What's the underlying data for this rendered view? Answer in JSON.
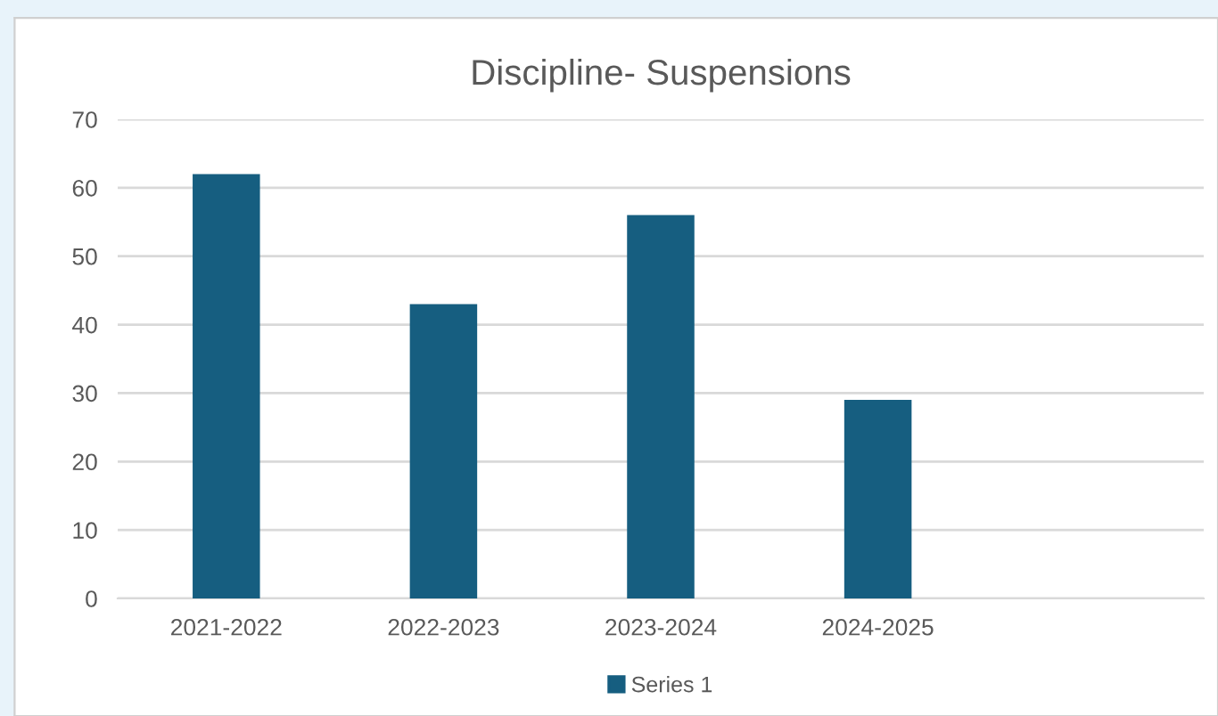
{
  "chart_data": {
    "type": "bar",
    "title": "Discipline- Suspensions",
    "categories": [
      "2021-2022",
      "2022-2023",
      "2023-2024",
      "2024-2025",
      null
    ],
    "series": [
      {
        "name": "Series 1",
        "color": "#165e80",
        "values": [
          62,
          43,
          56,
          29,
          null
        ]
      }
    ],
    "ylim": [
      0,
      70
    ],
    "yticks": [
      0,
      10,
      20,
      30,
      40,
      50,
      60,
      70
    ],
    "grid": "y",
    "legend": "bottom"
  }
}
